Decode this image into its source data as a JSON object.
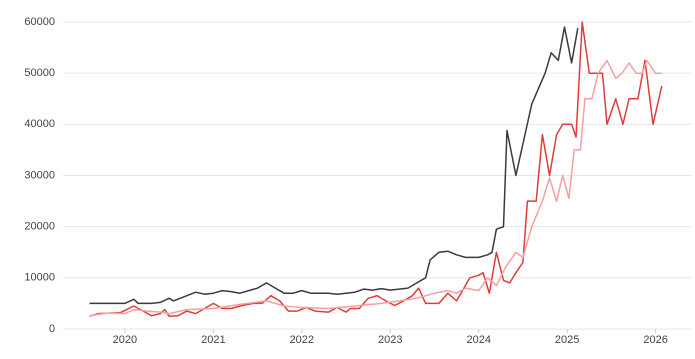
{
  "chart_data": {
    "type": "line",
    "xlim": [
      2019.3,
      2026.4
    ],
    "xticks": [
      2020,
      2021,
      2022,
      2023,
      2024,
      2025,
      2026
    ],
    "ylim": [
      0,
      60000
    ],
    "yticks": [
      0,
      10000,
      20000,
      30000,
      40000,
      50000,
      60000
    ],
    "grid": true,
    "series": [
      {
        "color": "#3a3a3a",
        "x": [
          2019.6,
          2019.8,
          2020.0,
          2020.1,
          2020.15,
          2020.3,
          2020.4,
          2020.5,
          2020.55,
          2020.7,
          2020.8,
          2020.9,
          2021.0,
          2021.1,
          2021.2,
          2021.3,
          2021.4,
          2021.5,
          2021.6,
          2021.7,
          2021.8,
          2021.9,
          2022.0,
          2022.1,
          2022.3,
          2022.4,
          2022.6,
          2022.7,
          2022.8,
          2022.9,
          2023.0,
          2023.1,
          2023.2,
          2023.3,
          2023.4,
          2023.45,
          2023.55,
          2023.65,
          2023.75,
          2023.85,
          2024.0,
          2024.1,
          2024.15,
          2024.2,
          2024.28,
          2024.32,
          2024.42,
          2024.6,
          2024.75,
          2024.82,
          2024.9,
          2024.97,
          2025.05,
          2025.12
        ],
        "values": [
          5000,
          5000,
          5000,
          5800,
          5000,
          5000,
          5200,
          6000,
          5500,
          6500,
          7200,
          6800,
          7000,
          7500,
          7300,
          7000,
          7500,
          8000,
          9000,
          8000,
          7000,
          7000,
          7500,
          7000,
          7000,
          6800,
          7200,
          7800,
          7600,
          7900,
          7600,
          7800,
          8000,
          9000,
          10000,
          13500,
          15000,
          15200,
          14500,
          14000,
          14000,
          14500,
          15000,
          19500,
          20000,
          38800,
          30000,
          44000,
          50000,
          54000,
          52500,
          59000,
          52000,
          58800
        ]
      },
      {
        "color": "#e03c3c",
        "x": [
          2019.6,
          2019.7,
          2019.95,
          2020.1,
          2020.3,
          2020.4,
          2020.45,
          2020.5,
          2020.6,
          2020.7,
          2020.8,
          2020.9,
          2021.0,
          2021.1,
          2021.2,
          2021.3,
          2021.45,
          2021.55,
          2021.65,
          2021.75,
          2021.85,
          2021.95,
          2022.05,
          2022.15,
          2022.3,
          2022.4,
          2022.5,
          2022.55,
          2022.65,
          2022.75,
          2022.85,
          2022.95,
          2023.05,
          2023.15,
          2023.25,
          2023.32,
          2023.4,
          2023.55,
          2023.65,
          2023.75,
          2023.8,
          2023.9,
          2024.0,
          2024.05,
          2024.12,
          2024.2,
          2024.28,
          2024.35,
          2024.42,
          2024.5,
          2024.55,
          2024.65,
          2024.72,
          2024.8,
          2024.88,
          2024.95,
          2025.05,
          2025.1,
          2025.17,
          2025.25,
          2025.4,
          2025.45,
          2025.55,
          2025.63,
          2025.7,
          2025.8,
          2025.88,
          2025.97,
          2026.07
        ],
        "values": [
          2500,
          3000,
          3200,
          4500,
          2600,
          3000,
          3800,
          2500,
          2600,
          3500,
          3000,
          4000,
          5000,
          4000,
          4000,
          4500,
          5000,
          5000,
          6500,
          5500,
          3500,
          3500,
          4200,
          3500,
          3300,
          4200,
          3300,
          4000,
          4000,
          6000,
          6500,
          5500,
          4600,
          5500,
          6500,
          8000,
          5000,
          5000,
          7000,
          5500,
          7000,
          10000,
          10500,
          11000,
          7000,
          15000,
          9500,
          9000,
          11000,
          13000,
          25000,
          25000,
          38000,
          30000,
          38000,
          40000,
          40000,
          37500,
          60000,
          50000,
          50000,
          40000,
          45000,
          40000,
          45000,
          45000,
          52500,
          40000,
          47500
        ]
      },
      {
        "color": "#f4a0a0",
        "x": [
          2019.6,
          2019.8,
          2020.0,
          2020.1,
          2020.25,
          2020.4,
          2020.5,
          2020.7,
          2021.0,
          2021.3,
          2021.6,
          2021.8,
          2022.0,
          2022.3,
          2022.6,
          2022.9,
          2023.1,
          2023.3,
          2023.5,
          2023.65,
          2023.75,
          2023.85,
          2024.0,
          2024.1,
          2024.2,
          2024.3,
          2024.42,
          2024.5,
          2024.6,
          2024.72,
          2024.8,
          2024.88,
          2024.95,
          2025.02,
          2025.08,
          2025.15,
          2025.2,
          2025.28,
          2025.35,
          2025.45,
          2025.55,
          2025.62,
          2025.7,
          2025.78,
          2025.85,
          2025.9,
          2026.0,
          2026.07
        ],
        "values": [
          2600,
          3100,
          3000,
          3800,
          3500,
          3300,
          3000,
          3800,
          4000,
          4800,
          5500,
          4500,
          4200,
          4000,
          4500,
          5000,
          5500,
          6000,
          7000,
          7500,
          7000,
          8000,
          7500,
          10000,
          8500,
          12000,
          15000,
          14000,
          20000,
          25000,
          29500,
          25000,
          30000,
          25500,
          35000,
          35000,
          45000,
          45000,
          50000,
          52500,
          49000,
          50000,
          52000,
          50000,
          50000,
          52500,
          50000,
          50000
        ]
      }
    ]
  }
}
